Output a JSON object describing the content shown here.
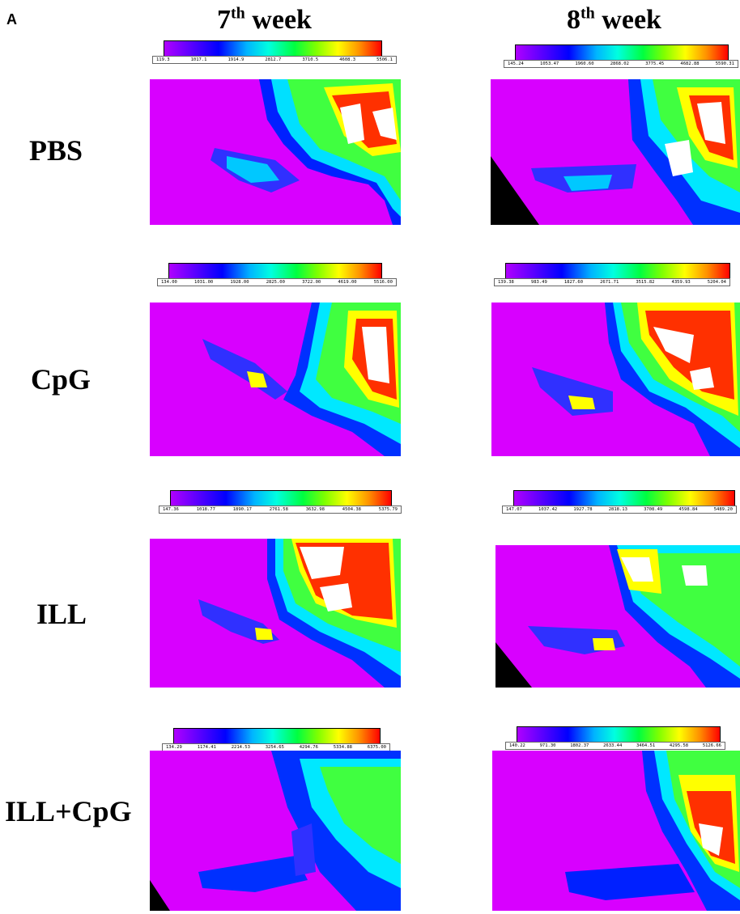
{
  "panel_letter": "A",
  "columns": [
    {
      "week_num": "7",
      "week_suffix": "th",
      "week_word": "week"
    },
    {
      "week_num": "8",
      "week_suffix": "th",
      "week_word": "week"
    }
  ],
  "rows": [
    {
      "label": "PBS"
    },
    {
      "label": "CpG"
    },
    {
      "label": "ILL"
    },
    {
      "label": "ILL+CpG"
    }
  ],
  "scales": [
    {
      "ticks": [
        "119.3",
        "1017.1",
        "1914.9",
        "2812.7",
        "3710.5",
        "4608.3",
        "5506.1"
      ]
    },
    {
      "ticks": [
        "145.24",
        "1053.47",
        "1960.60",
        "2868.02",
        "3775.45",
        "4682.88",
        "5590.31"
      ]
    },
    {
      "ticks": [
        "134.00",
        "1031.00",
        "1928.00",
        "2825.00",
        "3722.00",
        "4619.00",
        "5516.00"
      ]
    },
    {
      "ticks": [
        "139.38",
        "983.49",
        "1827.60",
        "2671.71",
        "3515.82",
        "4359.93",
        "5204.04"
      ]
    },
    {
      "ticks": [
        "147.36",
        "1018.77",
        "1890.17",
        "2761.58",
        "3632.98",
        "4504.38",
        "5375.79"
      ]
    },
    {
      "ticks": [
        "147.07",
        "1037.42",
        "1927.78",
        "2818.13",
        "3708.49",
        "4598.84",
        "5489.20"
      ]
    },
    {
      "ticks": [
        "134.29",
        "1174.41",
        "2214.53",
        "3254.65",
        "4294.76",
        "5334.88",
        "6375.00"
      ]
    },
    {
      "ticks": [
        "140.22",
        "971.30",
        "1802.37",
        "2633.44",
        "3464.51",
        "4295.58",
        "5126.66"
      ]
    }
  ]
}
